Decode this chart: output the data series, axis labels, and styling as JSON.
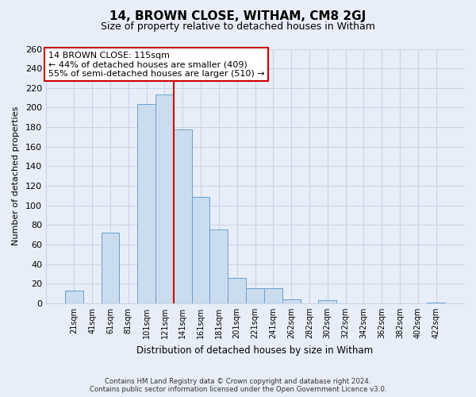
{
  "title": "14, BROWN CLOSE, WITHAM, CM8 2GJ",
  "subtitle": "Size of property relative to detached houses in Witham",
  "xlabel": "Distribution of detached houses by size in Witham",
  "ylabel": "Number of detached properties",
  "bar_labels": [
    "21sqm",
    "41sqm",
    "61sqm",
    "81sqm",
    "101sqm",
    "121sqm",
    "141sqm",
    "161sqm",
    "181sqm",
    "201sqm",
    "221sqm",
    "241sqm",
    "262sqm",
    "282sqm",
    "302sqm",
    "322sqm",
    "342sqm",
    "362sqm",
    "382sqm",
    "402sqm",
    "422sqm"
  ],
  "bar_values": [
    13,
    0,
    72,
    0,
    204,
    213,
    178,
    109,
    75,
    26,
    15,
    15,
    4,
    0,
    3,
    0,
    0,
    0,
    0,
    0,
    1
  ],
  "bar_color": "#ccdcef",
  "bar_edge_color": "#6aa0cc",
  "vline_x_index": 5,
  "vline_color": "#cc0000",
  "annotation_title": "14 BROWN CLOSE: 115sqm",
  "annotation_line1": "← 44% of detached houses are smaller (409)",
  "annotation_line2": "55% of semi-detached houses are larger (510) →",
  "annotation_box_color": "#ffffff",
  "annotation_box_edge": "#cc0000",
  "ylim": [
    0,
    260
  ],
  "yticks": [
    0,
    20,
    40,
    60,
    80,
    100,
    120,
    140,
    160,
    180,
    200,
    220,
    240,
    260
  ],
  "footer_line1": "Contains HM Land Registry data © Crown copyright and database right 2024.",
  "footer_line2": "Contains public sector information licensed under the Open Government Licence v3.0.",
  "background_color": "#e8eef8",
  "grid_color": "#c8d4e8"
}
